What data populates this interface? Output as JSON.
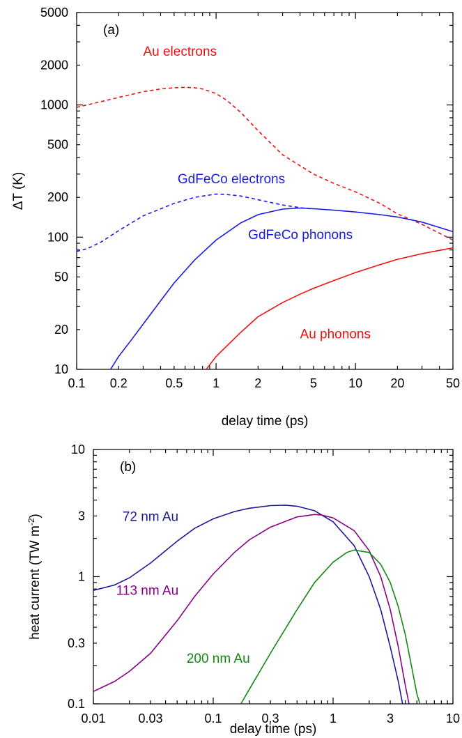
{
  "chart_data": [
    {
      "type": "line",
      "panel_label": "(a)",
      "xlabel": "delay time (ps)",
      "ylabel": "ΔT (K)",
      "xscale": "log",
      "yscale": "log",
      "xlim": [
        0.1,
        50
      ],
      "ylim": [
        10,
        5000
      ],
      "xticks": [
        {
          "value": 0.1,
          "label": "0.1"
        },
        {
          "value": 0.2,
          "label": "0.2"
        },
        {
          "value": 0.5,
          "label": "0.5"
        },
        {
          "value": 1,
          "label": "1"
        },
        {
          "value": 2,
          "label": "2"
        },
        {
          "value": 5,
          "label": "5"
        },
        {
          "value": 10,
          "label": "10"
        },
        {
          "value": 20,
          "label": "20"
        },
        {
          "value": 50,
          "label": "50"
        }
      ],
      "yticks": [
        {
          "value": 10,
          "label": "10"
        },
        {
          "value": 20,
          "label": "20"
        },
        {
          "value": 50,
          "label": "50"
        },
        {
          "value": 100,
          "label": "100"
        },
        {
          "value": 200,
          "label": "200"
        },
        {
          "value": 500,
          "label": "500"
        },
        {
          "value": 1000,
          "label": "1000"
        },
        {
          "value": 2000,
          "label": "2000"
        },
        {
          "value": 5000,
          "label": "5000"
        }
      ],
      "grid": false,
      "series": [
        {
          "name": "Au electrons",
          "color": "#ee1111",
          "dash": "dashed",
          "x": [
            0.1,
            0.15,
            0.2,
            0.3,
            0.4,
            0.5,
            0.6,
            0.7,
            0.8,
            1.0,
            1.2,
            1.5,
            2.0,
            3.0,
            5.0,
            7.0,
            10,
            15,
            20,
            30,
            50
          ],
          "y": [
            960,
            1060,
            1140,
            1260,
            1320,
            1350,
            1360,
            1350,
            1320,
            1220,
            1080,
            880,
            640,
            420,
            300,
            255,
            220,
            180,
            150,
            125,
            95
          ]
        },
        {
          "name": "GdFeCo electrons",
          "color": "#1a1ae6",
          "dash": "dashed",
          "x": [
            0.1,
            0.12,
            0.15,
            0.2,
            0.3,
            0.5,
            0.7,
            1.0,
            1.2,
            1.5,
            2.0,
            3.0,
            4.0,
            5.0
          ],
          "y": [
            78,
            82,
            92,
            112,
            145,
            180,
            200,
            212,
            210,
            205,
            192,
            175,
            167,
            163
          ]
        },
        {
          "name": "GdFeCo phonons",
          "color": "#1a1ae6",
          "dash": "solid",
          "x": [
            0.17,
            0.2,
            0.25,
            0.3,
            0.4,
            0.5,
            0.7,
            1.0,
            1.5,
            2.0,
            3.0,
            4.0,
            5.0,
            7.0,
            10,
            15,
            20,
            30,
            50
          ],
          "y": [
            9.5,
            12.5,
            17,
            22,
            33,
            45,
            67,
            95,
            128,
            148,
            163,
            166,
            164,
            160,
            155,
            148,
            142,
            130,
            110
          ]
        },
        {
          "name": "Au phonons",
          "color": "#ee1111",
          "dash": "solid",
          "x": [
            0.85,
            1.0,
            1.5,
            2.0,
            3.0,
            4.0,
            5.0,
            7.0,
            10,
            15,
            20,
            30,
            50
          ],
          "y": [
            10,
            12.5,
            19,
            25,
            32,
            37,
            41,
            47,
            54,
            62,
            68,
            75,
            83
          ]
        }
      ],
      "labels": [
        {
          "text": "Au electrons",
          "color": "#ee1111",
          "x": 0.3,
          "y": 2350
        },
        {
          "text": "GdFeCo electrons",
          "color": "#1a1ae6",
          "x": 0.53,
          "y": 255
        },
        {
          "text": "GdFeCo phonons",
          "color": "#1a1ae6",
          "x": 1.7,
          "y": 97
        },
        {
          "text": "Au phonons",
          "color": "#ee1111",
          "x": 4.0,
          "y": 17.2
        }
      ]
    },
    {
      "type": "line",
      "panel_label": "(b)",
      "xlabel": "delay time (ps)",
      "ylabel": "heat current (TW m",
      "ylabel_sup": "-2",
      "ylabel_end": ")",
      "xscale": "log",
      "yscale": "log",
      "xlim": [
        0.01,
        10
      ],
      "ylim": [
        0.1,
        10
      ],
      "xticks": [
        {
          "value": 0.01,
          "label": "0.01"
        },
        {
          "value": 0.03,
          "label": "0.03"
        },
        {
          "value": 0.1,
          "label": "0.1"
        },
        {
          "value": 0.3,
          "label": "0.3"
        },
        {
          "value": 1,
          "label": "1"
        },
        {
          "value": 3,
          "label": "3"
        },
        {
          "value": 10,
          "label": "10"
        }
      ],
      "yticks": [
        {
          "value": 0.1,
          "label": "0.1"
        },
        {
          "value": 0.3,
          "label": "0.3"
        },
        {
          "value": 1,
          "label": "1"
        },
        {
          "value": 3,
          "label": "3"
        },
        {
          "value": 10,
          "label": "10"
        }
      ],
      "grid": false,
      "series": [
        {
          "name": "72 nm Au",
          "color": "#1a1a99",
          "dash": "solid",
          "x": [
            0.01,
            0.015,
            0.02,
            0.03,
            0.05,
            0.07,
            0.1,
            0.15,
            0.2,
            0.3,
            0.4,
            0.5,
            0.7,
            1.0,
            1.5,
            2.0,
            2.5,
            3.0,
            3.5,
            3.8
          ],
          "y": [
            0.78,
            0.86,
            0.98,
            1.28,
            1.9,
            2.4,
            2.85,
            3.25,
            3.45,
            3.62,
            3.65,
            3.58,
            3.3,
            2.7,
            1.75,
            1.0,
            0.55,
            0.28,
            0.15,
            0.1
          ]
        },
        {
          "name": "113 nm Au",
          "color": "#880088",
          "dash": "solid",
          "x": [
            0.01,
            0.015,
            0.02,
            0.03,
            0.05,
            0.07,
            0.1,
            0.15,
            0.2,
            0.3,
            0.5,
            0.7,
            0.8,
            1.0,
            1.5,
            2.0,
            2.5,
            3.0,
            3.5,
            4.0,
            4.3
          ],
          "y": [
            0.125,
            0.15,
            0.18,
            0.25,
            0.45,
            0.7,
            1.05,
            1.55,
            1.95,
            2.45,
            2.95,
            3.08,
            3.05,
            2.9,
            2.3,
            1.6,
            1.0,
            0.55,
            0.28,
            0.14,
            0.1
          ]
        },
        {
          "name": "200 nm Au",
          "color": "#118811",
          "dash": "solid",
          "x": [
            0.17,
            0.2,
            0.3,
            0.5,
            0.7,
            1.0,
            1.3,
            1.5,
            2.0,
            2.5,
            3.0,
            3.5,
            4.0,
            4.5,
            5.0,
            5.3
          ],
          "y": [
            0.1,
            0.13,
            0.25,
            0.55,
            0.9,
            1.3,
            1.55,
            1.62,
            1.55,
            1.25,
            0.9,
            0.58,
            0.35,
            0.2,
            0.12,
            0.1
          ]
        }
      ],
      "labels": [
        {
          "text": "72 nm Au",
          "color": "#1a1a99",
          "x": 0.0175,
          "y": 2.75
        },
        {
          "text": "113 nm Au",
          "color": "#880088",
          "x": 0.0155,
          "y": 0.72
        },
        {
          "text": "200 nm Au",
          "color": "#118811",
          "x": 0.06,
          "y": 0.21
        }
      ]
    }
  ]
}
